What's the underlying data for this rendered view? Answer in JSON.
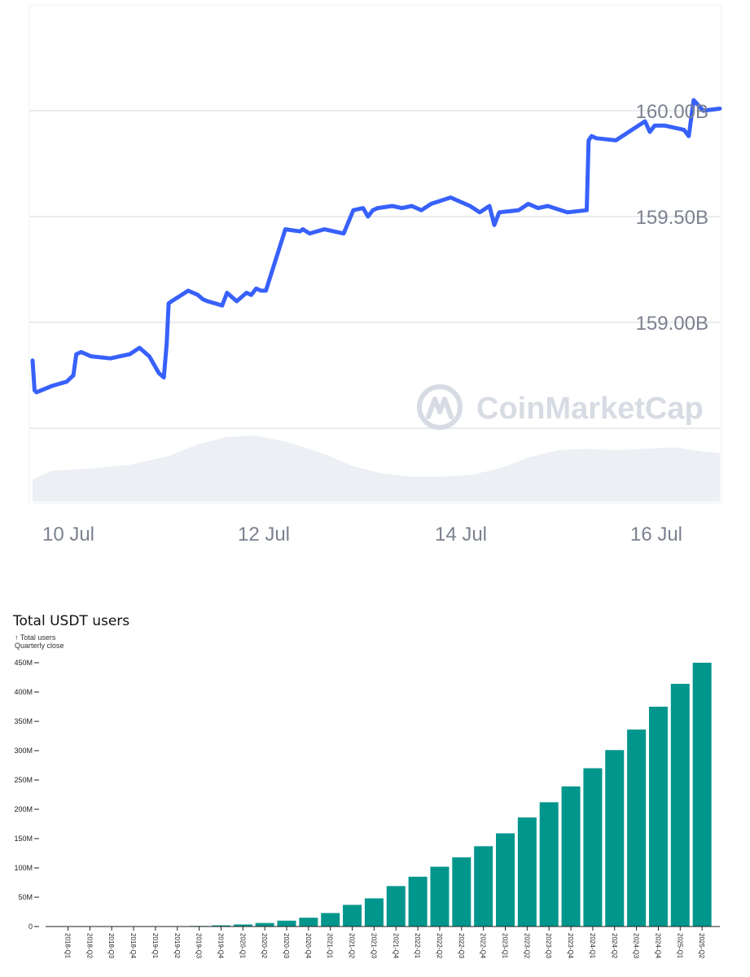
{
  "chart_data": [
    {
      "type": "line",
      "title": "",
      "x_ticks": [
        "10 Jul",
        "12 Jul",
        "14 Jul",
        "16 Jul"
      ],
      "y_ticks": [
        "159.00B",
        "159.50B",
        "160.00B"
      ],
      "y_tick_values": [
        159.0,
        159.5,
        160.0
      ],
      "ylim": [
        158.5,
        160.5
      ],
      "xlim": [
        0,
        7.07
      ],
      "watermark": "CoinMarketCap",
      "line_color": "#3861fb",
      "grid": true,
      "series": [
        {
          "x": [
            0.0,
            0.02,
            0.04,
            0.2,
            0.35,
            0.42,
            0.45,
            0.5,
            0.6,
            0.8,
            1.0,
            1.1,
            1.2,
            1.3,
            1.35,
            1.38,
            1.4,
            1.43,
            1.5,
            1.6,
            1.7,
            1.75,
            1.8,
            1.95,
            2.0,
            2.1,
            2.2,
            2.25,
            2.3,
            2.35,
            2.4,
            2.6,
            2.75,
            2.78,
            2.85,
            3.0,
            3.2,
            3.3,
            3.4,
            3.45,
            3.5,
            3.55,
            3.7,
            3.8,
            3.9,
            4.0,
            4.1,
            4.3,
            4.5,
            4.6,
            4.7,
            4.75,
            4.8,
            5.0,
            5.1,
            5.2,
            5.3,
            5.5,
            5.7,
            5.72,
            5.75,
            5.8,
            6.0,
            6.2,
            6.3,
            6.35,
            6.4,
            6.5,
            6.7,
            6.75,
            6.8,
            6.9,
            7.07
          ],
          "y": [
            158.82,
            158.68,
            158.67,
            158.7,
            158.72,
            158.75,
            158.85,
            158.86,
            158.84,
            158.83,
            158.85,
            158.88,
            158.84,
            158.76,
            158.74,
            158.9,
            159.09,
            159.1,
            159.12,
            159.15,
            159.13,
            159.11,
            159.1,
            159.08,
            159.14,
            159.1,
            159.14,
            159.13,
            159.16,
            159.15,
            159.15,
            159.44,
            159.43,
            159.44,
            159.42,
            159.44,
            159.42,
            159.53,
            159.54,
            159.5,
            159.53,
            159.54,
            159.55,
            159.54,
            159.55,
            159.53,
            159.56,
            159.59,
            159.55,
            159.52,
            159.55,
            159.46,
            159.52,
            159.53,
            159.56,
            159.54,
            159.55,
            159.52,
            159.53,
            159.86,
            159.88,
            159.87,
            159.86,
            159.92,
            159.95,
            159.9,
            159.93,
            159.93,
            159.91,
            159.88,
            160.05,
            160.0,
            160.01
          ]
        }
      ],
      "volume_series": {
        "x": [
          0.0,
          0.2,
          0.6,
          1.0,
          1.4,
          1.7,
          2.0,
          2.3,
          2.6,
          3.0,
          3.3,
          3.6,
          3.9,
          4.2,
          4.5,
          4.8,
          5.1,
          5.4,
          5.7,
          6.0,
          6.3,
          6.6,
          6.9,
          7.07
        ],
        "values": [
          0.3,
          0.42,
          0.45,
          0.5,
          0.62,
          0.78,
          0.88,
          0.9,
          0.82,
          0.65,
          0.48,
          0.38,
          0.34,
          0.34,
          0.36,
          0.45,
          0.6,
          0.7,
          0.72,
          0.7,
          0.72,
          0.74,
          0.68,
          0.66
        ]
      }
    },
    {
      "type": "bar",
      "title": "Total USDT users",
      "ylabel": "↑ Total users",
      "subtitle": "Quarterly close",
      "ylim": [
        0,
        450000000
      ],
      "y_ticks": [
        "0",
        "50M",
        "100M",
        "150M",
        "200M",
        "250M",
        "300M",
        "350M",
        "400M",
        "450M"
      ],
      "y_tick_values": [
        0,
        50000000,
        100000000,
        150000000,
        200000000,
        250000000,
        300000000,
        350000000,
        400000000,
        450000000
      ],
      "bar_color": "#00968c",
      "categories": [
        "2018-Q1",
        "2018-Q2",
        "2018-Q3",
        "2018-Q4",
        "2019-Q1",
        "2019-Q2",
        "2019-Q3",
        "2019-Q4",
        "2020-Q1",
        "2020-Q2",
        "2020-Q3",
        "2020-Q4",
        "2021-Q1",
        "2021-Q2",
        "2021-Q3",
        "2021-Q4",
        "2022-Q1",
        "2022-Q2",
        "2022-Q3",
        "2022-Q4",
        "2023-Q1",
        "2023-Q2",
        "2023-Q3",
        "2023-Q4",
        "2024-Q1",
        "2024-Q2",
        "2024-Q3",
        "2024-Q4",
        "2025-Q1",
        "2025-Q2"
      ],
      "values": [
        0,
        0,
        0,
        0,
        0,
        500000,
        1000000,
        2000000,
        3500000,
        6000000,
        10000000,
        15000000,
        23000000,
        37000000,
        48000000,
        69000000,
        85000000,
        102000000,
        118000000,
        137000000,
        159000000,
        186000000,
        212000000,
        239000000,
        270000000,
        301000000,
        336000000,
        375000000,
        414000000,
        450000000
      ]
    }
  ]
}
